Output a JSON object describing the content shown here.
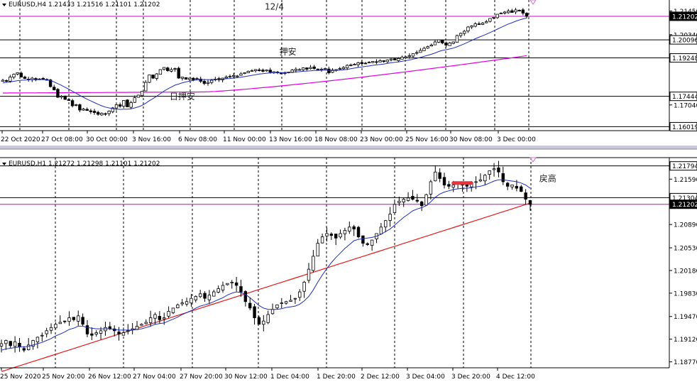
{
  "colors": {
    "background": "#ffffff",
    "candle": "#000000",
    "ma_fast": "#1f2fbf",
    "ma_slow_top": "#e000e0",
    "ma_slow_bottom": "#e21b1b",
    "hline": "#000000",
    "hline_pink": "#d000d0",
    "axis": "#000000",
    "separator": "#c8c8dc",
    "price_label_bg": "#000000",
    "price_label_fg": "#ffffff",
    "marker": "#e8323c"
  },
  "chart_data": [
    {
      "type": "candlestick",
      "symbol": "EURUSD",
      "timeframe": "H4",
      "header": "EURUSD,H4  1.21433 1.21516 1.21101 1.21202",
      "ylim": [
        1.159,
        1.219
      ],
      "y_ticks": [
        "1.21450",
        "1.20340",
        "1.17040"
      ],
      "x_labels": [
        "22 Oct 2020",
        "27 Oct 08:00",
        "30 Oct 00:00",
        "3 Nov 16:00",
        "6 Nov 08:00",
        "11 Nov 00:00",
        "13 Nov 16:00",
        "18 Nov 08:00",
        "23 Nov 00:00",
        "25 Nov 16:00",
        "30 Nov 08:00",
        "3 Dec 00:00"
      ],
      "price_labels": [
        {
          "text": "1.21202",
          "value": 1.21202,
          "style": "highlight"
        },
        {
          "text": "1.20096",
          "value": 1.20096,
          "style": "box"
        },
        {
          "text": "1.19248",
          "value": 1.19248,
          "style": "box"
        },
        {
          "text": "1.17444",
          "value": 1.17444,
          "style": "box"
        },
        {
          "text": "1.16019",
          "value": 1.16019,
          "style": "box"
        }
      ],
      "horizontal_lines": [
        {
          "value": 1.21202,
          "style": "pink"
        },
        {
          "value": 1.20096,
          "style": "black"
        },
        {
          "value": 1.19248,
          "style": "black"
        },
        {
          "value": 1.17444,
          "style": "black"
        },
        {
          "value": 1.16019,
          "style": "black"
        }
      ],
      "annotations": [
        {
          "text": "12/4",
          "value": 1.2165,
          "index": 71.5
        },
        {
          "text": "押安",
          "value": 1.1954,
          "index": 75.5
        },
        {
          "text": "日押安",
          "value": 1.1744,
          "index": 45.5
        }
      ],
      "close": [
        1.182,
        1.1818,
        1.1835,
        1.1848,
        1.1855,
        1.1835,
        1.1828,
        1.1825,
        1.183,
        1.1822,
        1.1826,
        1.1824,
        1.182,
        1.179,
        1.1775,
        1.174,
        1.1745,
        1.173,
        1.1725,
        1.17,
        1.1705,
        1.168,
        1.1685,
        1.1678,
        1.1672,
        1.1668,
        1.166,
        1.1665,
        1.1662,
        1.1675,
        1.169,
        1.1705,
        1.1698,
        1.1725,
        1.1695,
        1.1715,
        1.1738,
        1.175,
        1.1768,
        1.181,
        1.1845,
        1.183,
        1.185,
        1.187,
        1.188,
        1.1865,
        1.187,
        1.1875,
        1.183,
        1.1835,
        1.1825,
        1.183,
        1.1822,
        1.1828,
        1.1815,
        1.1805,
        1.181,
        1.182,
        1.1825,
        1.1822,
        1.183,
        1.1835,
        1.1838,
        1.1842,
        1.184,
        1.185,
        1.1855,
        1.1862,
        1.1865,
        1.187,
        1.1865,
        1.1862,
        1.1868,
        1.1858,
        1.186,
        1.1855,
        1.185,
        1.1855,
        1.1858,
        1.1868,
        1.1872,
        1.187,
        1.1878,
        1.1872,
        1.188,
        1.1875,
        1.187,
        1.1872,
        1.1875,
        1.1855,
        1.1868,
        1.187,
        1.1875,
        1.188,
        1.189,
        1.1892,
        1.1895,
        1.1902,
        1.1898,
        1.19,
        1.1905,
        1.1908,
        1.1905,
        1.1912,
        1.1908,
        1.1915,
        1.192,
        1.1915,
        1.1922,
        1.1928,
        1.193,
        1.1935,
        1.1945,
        1.195,
        1.196,
        1.197,
        1.1978,
        1.1985,
        1.2,
        1.201,
        1.1995,
        1.1985,
        1.1995,
        1.2,
        1.203,
        1.204,
        1.205,
        1.207,
        1.2075,
        1.2085,
        1.2082,
        1.2088,
        1.2095,
        1.211,
        1.2115,
        1.213,
        1.2135,
        1.214,
        1.2145,
        1.2138,
        1.215,
        1.2148,
        1.2135,
        1.212
      ],
      "ma_fast": [
        1.1808,
        1.181,
        1.1812,
        1.1815,
        1.1818,
        1.182,
        1.1821,
        1.1822,
        1.1823,
        1.1823,
        1.1823,
        1.1823,
        1.1822,
        1.1818,
        1.1812,
        1.1804,
        1.1796,
        1.1787,
        1.1778,
        1.1768,
        1.1759,
        1.1749,
        1.174,
        1.1731,
        1.1723,
        1.1715,
        1.1707,
        1.17,
        1.1694,
        1.169,
        1.1687,
        1.1685,
        1.1683,
        1.1684,
        1.1684,
        1.1686,
        1.169,
        1.1695,
        1.1702,
        1.1712,
        1.1724,
        1.1734,
        1.1745,
        1.1757,
        1.1769,
        1.1779,
        1.1788,
        1.1797,
        1.1802,
        1.1808,
        1.1812,
        1.1816,
        1.1819,
        1.1822,
        1.1823,
        1.1823,
        1.1823,
        1.1823,
        1.1824,
        1.1824,
        1.1825,
        1.1827,
        1.1828,
        1.183,
        1.1832,
        1.1834,
        1.1837,
        1.184,
        1.1843,
        1.1846,
        1.1849,
        1.1851,
        1.1853,
        1.1854,
        1.1855,
        1.1856,
        1.1856,
        1.1856,
        1.1857,
        1.1858,
        1.1859,
        1.186,
        1.1862,
        1.1863,
        1.1864,
        1.1866,
        1.1866,
        1.1867,
        1.1868,
        1.1866,
        1.1866,
        1.1866,
        1.1867,
        1.1869,
        1.1871,
        1.1874,
        1.1877,
        1.188,
        1.1882,
        1.1885,
        1.1887,
        1.189,
        1.1892,
        1.1894,
        1.1896,
        1.1899,
        1.1902,
        1.1904,
        1.1906,
        1.1909,
        1.1912,
        1.1915,
        1.1919,
        1.1923,
        1.1927,
        1.1932,
        1.1937,
        1.1942,
        1.1948,
        1.1955,
        1.196,
        1.1963,
        1.1967,
        1.1971,
        1.1977,
        1.1984,
        1.1991,
        1.1999,
        1.2007,
        1.2015,
        1.2022,
        1.2029,
        1.2036,
        1.2044,
        1.2052,
        1.206,
        1.2068,
        1.2076,
        1.2084,
        1.209,
        1.2097,
        1.2103,
        1.2108,
        1.2112
      ],
      "ma_slow": {
        "from_index": 0,
        "start": 1.176,
        "dip_index": 55,
        "dip": 1.1765,
        "end": 1.1935
      }
    },
    {
      "type": "candlestick",
      "symbol": "EURUSD",
      "timeframe": "H1",
      "header": "EURUSD,H1  1.21272 1.21298 1.21101 1.21202",
      "ylim": [
        1.187,
        1.219
      ],
      "y_ticks": [
        "1.21590",
        "1.20890",
        "1.20530",
        "1.20180",
        "1.19830",
        "1.19470",
        "1.19120",
        "1.18770"
      ],
      "x_labels": [
        "25 Nov 2020",
        "25 Nov 20:00",
        "26 Nov 12:00",
        "27 Nov 04:00",
        "27 Nov 20:00",
        "30 Nov 12:00",
        "1 Dec 04:00",
        "1 Dec 20:00",
        "2 Dec 12:00",
        "3 Dec 04:00",
        "3 Dec 20:00",
        "4 Dec 12:00"
      ],
      "price_labels": [
        {
          "text": "1.21794",
          "value": 1.21794,
          "style": "box"
        },
        {
          "text": "1.21304",
          "value": 1.21304,
          "style": "box"
        },
        {
          "text": "1.21202",
          "value": 1.21202,
          "style": "highlight"
        }
      ],
      "horizontal_lines": [
        {
          "value": 1.21794,
          "style": "black"
        },
        {
          "value": 1.21304,
          "style": "black"
        },
        {
          "value": 1.21202,
          "style": "pink"
        }
      ],
      "annotations": [
        {
          "text": "戻高",
          "value": 1.216,
          "index": 119
        }
      ],
      "marker": {
        "index_from": 100,
        "index_to": 104,
        "value": 1.2153
      },
      "close": [
        1.1905,
        1.191,
        1.1902,
        1.1908,
        1.19,
        1.1895,
        1.1903,
        1.191,
        1.1915,
        1.1918,
        1.1925,
        1.193,
        1.1935,
        1.1938,
        1.194,
        1.1945,
        1.1942,
        1.1948,
        1.1935,
        1.192,
        1.1918,
        1.1922,
        1.1925,
        1.193,
        1.1928,
        1.1925,
        1.192,
        1.1922,
        1.1925,
        1.1928,
        1.1932,
        1.1935,
        1.1938,
        1.1945,
        1.195,
        1.1942,
        1.1945,
        1.1955,
        1.196,
        1.1965,
        1.1968,
        1.197,
        1.1975,
        1.1978,
        1.1982,
        1.1975,
        1.198,
        1.1985,
        1.199,
        1.1995,
        1.1998,
        1.2,
        1.1995,
        1.1985,
        1.197,
        1.196,
        1.1945,
        1.1935,
        1.194,
        1.195,
        1.1958,
        1.1965,
        1.1968,
        1.197,
        1.1972,
        1.1975,
        1.1985,
        1.2,
        1.202,
        1.204,
        1.206,
        1.207,
        1.2075,
        1.2072,
        1.2068,
        1.2075,
        1.208,
        1.2085,
        1.2082,
        1.207,
        1.206,
        1.2058,
        1.2065,
        1.2075,
        1.2085,
        1.2095,
        1.2105,
        1.212,
        1.2125,
        1.2128,
        1.213,
        1.2128,
        1.2125,
        1.2118,
        1.2135,
        1.2155,
        1.217,
        1.216,
        1.215,
        1.2148,
        1.215,
        1.2152,
        1.215,
        1.2148,
        1.2152,
        1.2155,
        1.2158,
        1.2165,
        1.2172,
        1.2175,
        1.217,
        1.2155,
        1.2148,
        1.215,
        1.2145,
        1.214,
        1.2128,
        1.212
      ],
      "ma_fast": [
        1.1895,
        1.1897,
        1.1898,
        1.1899,
        1.19,
        1.19,
        1.1901,
        1.1903,
        1.1905,
        1.1907,
        1.191,
        1.1913,
        1.1917,
        1.192,
        1.1923,
        1.1927,
        1.1929,
        1.1932,
        1.1932,
        1.193,
        1.1929,
        1.1928,
        1.1928,
        1.1928,
        1.1928,
        1.1927,
        1.1926,
        1.1926,
        1.1926,
        1.1926,
        1.1927,
        1.1928,
        1.193,
        1.1932,
        1.1935,
        1.1936,
        1.1937,
        1.194,
        1.1943,
        1.1946,
        1.195,
        1.1953,
        1.1956,
        1.196,
        1.1963,
        1.1965,
        1.1967,
        1.197,
        1.1973,
        1.1976,
        1.198,
        1.1983,
        1.1985,
        1.1984,
        1.1981,
        1.1976,
        1.197,
        1.1964,
        1.196,
        1.1958,
        1.1958,
        1.1958,
        1.1959,
        1.1961,
        1.1962,
        1.1963,
        1.1966,
        1.1971,
        1.1978,
        1.1988,
        1.2,
        1.2011,
        1.2021,
        1.203,
        1.2038,
        1.2045,
        1.2052,
        1.2058,
        1.2064,
        1.2066,
        1.2067,
        1.2068,
        1.2069,
        1.2071,
        1.2074,
        1.2078,
        1.2082,
        1.2088,
        1.2094,
        1.21,
        1.2105,
        1.211,
        1.2113,
        1.2115,
        1.2118,
        1.2124,
        1.2131,
        1.2136,
        1.2139,
        1.2141,
        1.2143,
        1.2144,
        1.2145,
        1.2145,
        1.2146,
        1.2147,
        1.2148,
        1.215,
        1.2153,
        1.2156,
        1.2158,
        1.2158,
        1.2157,
        1.2156,
        1.2155,
        1.2153,
        1.215,
        1.2145
      ],
      "ma_slow": {
        "from_index": 0,
        "start": 1.1862,
        "end": 1.2122
      }
    }
  ]
}
